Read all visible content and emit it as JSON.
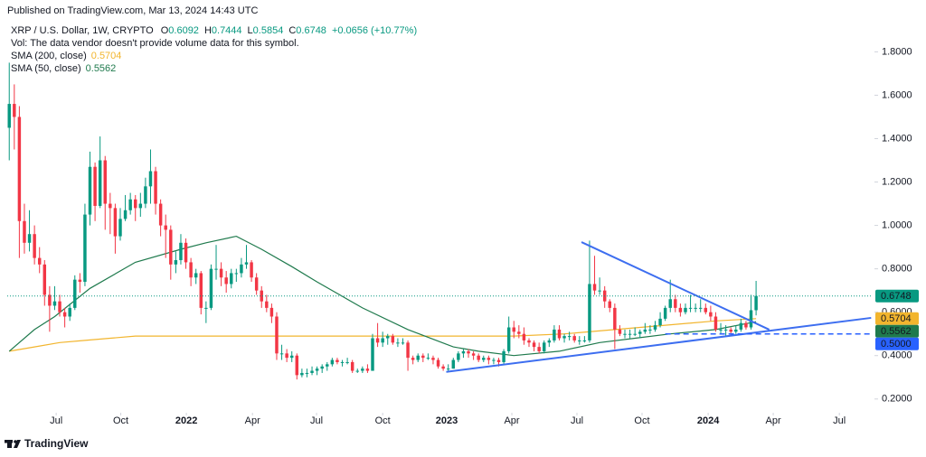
{
  "chart_data": {
    "type": "candlestick",
    "published": "Published on TradingView.com, Mar 13, 2024 14:43 UTC",
    "title": "XRP / U.S. Dollar, 1W, CRYPTO",
    "ohlc_labels": [
      "O",
      "H",
      "L",
      "C"
    ],
    "change": "+0.0656 (+10.77%)",
    "volume_note": "Vol: The data vendor doesn't provide volume data for this symbol.",
    "brand": "TradingView",
    "up_color": "#089981",
    "down_color": "#f23645",
    "xlim": [
      -0.4,
      171.1
    ],
    "xticks": [
      {
        "value": 9.3,
        "label": "Jul"
      },
      {
        "value": 22.1,
        "label": "Oct"
      },
      {
        "value": 35.1,
        "label": "2022",
        "bold": true
      },
      {
        "value": 48.2,
        "label": "Apr"
      },
      {
        "value": 60.9,
        "label": "Jul"
      },
      {
        "value": 74,
        "label": "Oct"
      },
      {
        "value": 86.7,
        "label": "2023",
        "bold": true
      },
      {
        "value": 99.6,
        "label": "Apr"
      },
      {
        "value": 112.5,
        "label": "Jul"
      },
      {
        "value": 125.4,
        "label": "Oct"
      },
      {
        "value": 138.5,
        "label": "2024",
        "bold": true
      },
      {
        "value": 151.4,
        "label": "Apr"
      },
      {
        "value": 164.5,
        "label": "Jul"
      }
    ],
    "ylim": [
      0.145,
      1.914
    ],
    "yticks": [
      {
        "value": 0.2,
        "label": "0.2000"
      },
      {
        "value": 0.4,
        "label": "0.4000"
      },
      {
        "value": 0.6,
        "label": "0.6000"
      },
      {
        "value": 0.8,
        "label": "0.8000"
      },
      {
        "value": 1.0,
        "label": "1.0000"
      },
      {
        "value": 1.2,
        "label": "1.2000"
      },
      {
        "value": 1.4,
        "label": "1.4000"
      },
      {
        "value": 1.6,
        "label": "1.6000"
      },
      {
        "value": 1.8,
        "label": "1.8000"
      }
    ],
    "candles": [
      [
        1.45,
        1.75,
        1.3,
        1.56
      ],
      [
        1.56,
        1.65,
        1.35,
        1.5
      ],
      [
        1.5,
        1.55,
        0.85,
        1.02
      ],
      [
        1.02,
        1.1,
        0.87,
        0.92
      ],
      [
        0.92,
        1.07,
        0.88,
        0.96
      ],
      [
        0.96,
        1.0,
        0.82,
        0.85
      ],
      [
        0.85,
        0.9,
        0.78,
        0.82
      ],
      [
        0.82,
        0.84,
        0.63,
        0.68
      ],
      [
        0.68,
        0.72,
        0.51,
        0.63
      ],
      [
        0.63,
        0.72,
        0.61,
        0.65
      ],
      [
        0.65,
        0.68,
        0.58,
        0.6
      ],
      [
        0.6,
        0.62,
        0.53,
        0.58
      ],
      [
        0.58,
        0.64,
        0.56,
        0.62
      ],
      [
        0.62,
        0.77,
        0.61,
        0.75
      ],
      [
        0.75,
        0.78,
        0.69,
        0.74
      ],
      [
        0.74,
        1.1,
        0.72,
        1.05
      ],
      [
        1.05,
        1.34,
        1.0,
        1.27
      ],
      [
        1.27,
        1.29,
        1.02,
        1.09
      ],
      [
        1.09,
        1.41,
        1.08,
        1.3
      ],
      [
        1.3,
        1.32,
        0.98,
        1.1
      ],
      [
        1.1,
        1.15,
        0.96,
        1.08
      ],
      [
        1.08,
        1.1,
        0.87,
        0.95
      ],
      [
        0.95,
        1.08,
        0.93,
        1.03
      ],
      [
        1.03,
        1.14,
        1.02,
        1.07
      ],
      [
        1.07,
        1.15,
        1.05,
        1.12
      ],
      [
        1.12,
        1.14,
        1.02,
        1.08
      ],
      [
        1.08,
        1.15,
        1.04,
        1.1
      ],
      [
        1.1,
        1.22,
        1.08,
        1.18
      ],
      [
        1.18,
        1.35,
        1.1,
        1.25
      ],
      [
        1.25,
        1.27,
        1.05,
        1.1
      ],
      [
        1.1,
        1.12,
        0.95,
        1.0
      ],
      [
        1.0,
        1.05,
        0.85,
        0.98
      ],
      [
        0.98,
        1.0,
        0.75,
        0.82
      ],
      [
        0.82,
        0.88,
        0.78,
        0.84
      ],
      [
        0.84,
        0.96,
        0.82,
        0.92
      ],
      [
        0.92,
        0.94,
        0.8,
        0.83
      ],
      [
        0.83,
        0.85,
        0.72,
        0.76
      ],
      [
        0.76,
        0.8,
        0.73,
        0.78
      ],
      [
        0.78,
        0.79,
        0.59,
        0.62
      ],
      [
        0.62,
        0.65,
        0.55,
        0.62
      ],
      [
        0.62,
        0.82,
        0.61,
        0.8
      ],
      [
        0.8,
        0.91,
        0.75,
        0.8
      ],
      [
        0.8,
        0.83,
        0.72,
        0.76
      ],
      [
        0.76,
        0.79,
        0.69,
        0.73
      ],
      [
        0.73,
        0.8,
        0.71,
        0.78
      ],
      [
        0.78,
        0.8,
        0.74,
        0.78
      ],
      [
        0.78,
        0.85,
        0.76,
        0.82
      ],
      [
        0.82,
        0.91,
        0.8,
        0.83
      ],
      [
        0.83,
        0.84,
        0.74,
        0.76
      ],
      [
        0.76,
        0.78,
        0.68,
        0.7
      ],
      [
        0.7,
        0.72,
        0.62,
        0.65
      ],
      [
        0.65,
        0.68,
        0.6,
        0.62
      ],
      [
        0.62,
        0.64,
        0.55,
        0.58
      ],
      [
        0.58,
        0.6,
        0.38,
        0.41
      ],
      [
        0.41,
        0.45,
        0.38,
        0.41
      ],
      [
        0.41,
        0.43,
        0.37,
        0.39
      ],
      [
        0.39,
        0.42,
        0.37,
        0.4
      ],
      [
        0.4,
        0.41,
        0.29,
        0.31
      ],
      [
        0.31,
        0.34,
        0.3,
        0.32
      ],
      [
        0.32,
        0.34,
        0.3,
        0.32
      ],
      [
        0.32,
        0.35,
        0.31,
        0.33
      ],
      [
        0.33,
        0.35,
        0.31,
        0.34
      ],
      [
        0.34,
        0.36,
        0.32,
        0.35
      ],
      [
        0.35,
        0.37,
        0.33,
        0.36
      ],
      [
        0.36,
        0.39,
        0.35,
        0.38
      ],
      [
        0.38,
        0.39,
        0.36,
        0.37
      ],
      [
        0.37,
        0.38,
        0.35,
        0.37
      ],
      [
        0.37,
        0.39,
        0.36,
        0.37
      ],
      [
        0.37,
        0.38,
        0.32,
        0.33
      ],
      [
        0.33,
        0.34,
        0.32,
        0.33
      ],
      [
        0.33,
        0.35,
        0.32,
        0.34
      ],
      [
        0.34,
        0.36,
        0.32,
        0.33
      ],
      [
        0.33,
        0.5,
        0.33,
        0.48
      ],
      [
        0.48,
        0.55,
        0.44,
        0.46
      ],
      [
        0.46,
        0.51,
        0.44,
        0.48
      ],
      [
        0.48,
        0.5,
        0.45,
        0.49
      ],
      [
        0.49,
        0.5,
        0.45,
        0.46
      ],
      [
        0.46,
        0.48,
        0.44,
        0.46
      ],
      [
        0.46,
        0.48,
        0.45,
        0.46
      ],
      [
        0.46,
        0.47,
        0.33,
        0.39
      ],
      [
        0.39,
        0.4,
        0.36,
        0.38
      ],
      [
        0.38,
        0.41,
        0.37,
        0.4
      ],
      [
        0.4,
        0.41,
        0.37,
        0.39
      ],
      [
        0.39,
        0.41,
        0.38,
        0.39
      ],
      [
        0.39,
        0.4,
        0.36,
        0.38
      ],
      [
        0.38,
        0.39,
        0.34,
        0.35
      ],
      [
        0.35,
        0.36,
        0.33,
        0.34
      ],
      [
        0.34,
        0.36,
        0.33,
        0.34
      ],
      [
        0.34,
        0.39,
        0.34,
        0.38
      ],
      [
        0.38,
        0.42,
        0.37,
        0.41
      ],
      [
        0.41,
        0.43,
        0.39,
        0.42
      ],
      [
        0.42,
        0.43,
        0.39,
        0.41
      ],
      [
        0.41,
        0.42,
        0.38,
        0.4
      ],
      [
        0.4,
        0.41,
        0.37,
        0.38
      ],
      [
        0.38,
        0.4,
        0.37,
        0.39
      ],
      [
        0.39,
        0.4,
        0.36,
        0.38
      ],
      [
        0.38,
        0.39,
        0.36,
        0.38
      ],
      [
        0.38,
        0.39,
        0.35,
        0.37
      ],
      [
        0.37,
        0.43,
        0.36,
        0.42
      ],
      [
        0.42,
        0.58,
        0.41,
        0.53
      ],
      [
        0.53,
        0.56,
        0.48,
        0.51
      ],
      [
        0.51,
        0.54,
        0.48,
        0.5
      ],
      [
        0.5,
        0.53,
        0.45,
        0.47
      ],
      [
        0.47,
        0.48,
        0.44,
        0.46
      ],
      [
        0.46,
        0.47,
        0.42,
        0.44
      ],
      [
        0.44,
        0.46,
        0.41,
        0.42
      ],
      [
        0.42,
        0.47,
        0.41,
        0.46
      ],
      [
        0.46,
        0.48,
        0.44,
        0.47
      ],
      [
        0.47,
        0.54,
        0.46,
        0.52
      ],
      [
        0.52,
        0.54,
        0.47,
        0.48
      ],
      [
        0.48,
        0.5,
        0.46,
        0.49
      ],
      [
        0.49,
        0.51,
        0.47,
        0.49
      ],
      [
        0.49,
        0.5,
        0.46,
        0.47
      ],
      [
        0.47,
        0.49,
        0.45,
        0.47
      ],
      [
        0.47,
        0.49,
        0.46,
        0.47
      ],
      [
        0.47,
        0.93,
        0.46,
        0.73
      ],
      [
        0.73,
        0.86,
        0.68,
        0.7
      ],
      [
        0.7,
        0.76,
        0.68,
        0.7
      ],
      [
        0.7,
        0.72,
        0.62,
        0.65
      ],
      [
        0.65,
        0.66,
        0.6,
        0.62
      ],
      [
        0.62,
        0.64,
        0.43,
        0.52
      ],
      [
        0.52,
        0.54,
        0.49,
        0.5
      ],
      [
        0.5,
        0.52,
        0.48,
        0.5
      ],
      [
        0.5,
        0.52,
        0.48,
        0.5
      ],
      [
        0.5,
        0.53,
        0.49,
        0.5
      ],
      [
        0.5,
        0.52,
        0.48,
        0.51
      ],
      [
        0.51,
        0.55,
        0.5,
        0.52
      ],
      [
        0.52,
        0.54,
        0.5,
        0.52
      ],
      [
        0.52,
        0.56,
        0.51,
        0.54
      ],
      [
        0.54,
        0.6,
        0.53,
        0.57
      ],
      [
        0.57,
        0.63,
        0.56,
        0.62
      ],
      [
        0.62,
        0.75,
        0.6,
        0.66
      ],
      [
        0.66,
        0.68,
        0.6,
        0.62
      ],
      [
        0.62,
        0.64,
        0.58,
        0.6
      ],
      [
        0.6,
        0.64,
        0.59,
        0.62
      ],
      [
        0.62,
        0.68,
        0.6,
        0.62
      ],
      [
        0.62,
        0.64,
        0.6,
        0.62
      ],
      [
        0.62,
        0.66,
        0.6,
        0.62
      ],
      [
        0.62,
        0.64,
        0.59,
        0.6
      ],
      [
        0.6,
        0.63,
        0.56,
        0.58
      ],
      [
        0.58,
        0.6,
        0.51,
        0.52
      ],
      [
        0.52,
        0.55,
        0.5,
        0.52
      ],
      [
        0.52,
        0.54,
        0.49,
        0.52
      ],
      [
        0.52,
        0.53,
        0.49,
        0.51
      ],
      [
        0.51,
        0.54,
        0.5,
        0.52
      ],
      [
        0.52,
        0.57,
        0.51,
        0.55
      ],
      [
        0.55,
        0.56,
        0.52,
        0.53
      ],
      [
        0.53,
        0.68,
        0.52,
        0.6092
      ],
      [
        0.6092,
        0.7444,
        0.5854,
        0.6748
      ]
    ],
    "series": [
      {
        "name": "SMA (200, close)",
        "color": "#f2b52e",
        "x": [
          0,
          5,
          10,
          15,
          20,
          25,
          30,
          40,
          50,
          60,
          70,
          80,
          90,
          100,
          110,
          120,
          130,
          140,
          148
        ],
        "values": [
          0.42,
          0.44,
          0.46,
          0.47,
          0.48,
          0.49,
          0.49,
          0.49,
          0.49,
          0.49,
          0.49,
          0.49,
          0.49,
          0.49,
          0.5,
          0.52,
          0.54,
          0.56,
          0.5704
        ]
      },
      {
        "name": "SMA (50, close)",
        "color": "#1f7a4d",
        "x": [
          0,
          5,
          9,
          16,
          25,
          34,
          39,
          45,
          50,
          56,
          61,
          70,
          79,
          88,
          93,
          100,
          109,
          117,
          124,
          131,
          140,
          148
        ],
        "values": [
          0.42,
          0.52,
          0.58,
          0.71,
          0.83,
          0.89,
          0.92,
          0.95,
          0.89,
          0.81,
          0.74,
          0.62,
          0.52,
          0.44,
          0.42,
          0.4,
          0.42,
          0.46,
          0.48,
          0.5,
          0.52,
          0.5562
        ]
      }
    ],
    "trendlines": [
      {
        "color": "#3d6ef0",
        "x": [
          113.4,
          150.6
        ],
        "values": [
          0.923,
          0.52
        ]
      },
      {
        "color": "#3d6ef0",
        "x": [
          86.6,
          170.8
        ],
        "values": [
          0.325,
          0.574
        ]
      }
    ],
    "support": {
      "value": 0.5,
      "label": "0.5000",
      "color": "#2962ff",
      "x_start": 130
    }
  }
}
